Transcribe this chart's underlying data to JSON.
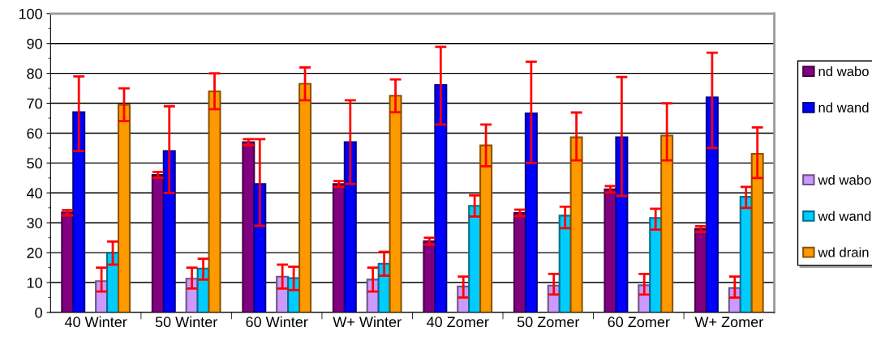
{
  "chart_data": {
    "type": "bar",
    "categories": [
      "40 Winter",
      "50 Winter",
      "60 Winter",
      "W+ Winter",
      "40 Zomer",
      "50 Zomer",
      "60 Zomer",
      "W+ Zomer"
    ],
    "ylim": [
      0,
      100
    ],
    "yticks": [
      0,
      10,
      20,
      30,
      40,
      50,
      60,
      70,
      80,
      90,
      100
    ],
    "grid": "y",
    "legend": "right",
    "series": [
      {
        "name": "nd wabo",
        "color": "#800080",
        "values": [
          33.5,
          46,
          57,
          43,
          23.8,
          33.3,
          41.2,
          28
        ],
        "errors": [
          [
            32.5,
            34.3
          ],
          [
            45,
            47
          ],
          [
            56,
            58
          ],
          [
            42,
            44
          ],
          [
            22.7,
            25
          ],
          [
            32.2,
            34.4
          ],
          [
            40.1,
            42.3
          ],
          [
            26.9,
            28.9
          ]
        ]
      },
      {
        "name": "nd wand",
        "color": "#0000ff",
        "values": [
          67,
          54,
          43,
          57,
          76.1,
          66.6,
          58.6,
          72
        ],
        "errors": [
          [
            54,
            79
          ],
          [
            40,
            69
          ],
          [
            29,
            58
          ],
          [
            43,
            71
          ],
          [
            62.9,
            88.9
          ],
          [
            50,
            83.9
          ],
          [
            39,
            78.8
          ],
          [
            55,
            86.9
          ]
        ]
      },
      {
        "values": [
          null,
          null,
          null,
          null,
          null,
          null,
          null,
          null
        ]
      },
      {
        "name": "wd wabo",
        "color": "#cc99ff",
        "values": [
          10.5,
          11.3,
          12,
          11,
          8.7,
          9,
          9.1,
          8.2
        ],
        "errors": [
          [
            7,
            15
          ],
          [
            8,
            15
          ],
          [
            8,
            16
          ],
          [
            7,
            15
          ],
          [
            5,
            12
          ],
          [
            6,
            12.9
          ],
          [
            6,
            12.9
          ],
          [
            5,
            12
          ]
        ]
      },
      {
        "name": "wd wand",
        "color": "#00ccff",
        "values": [
          20,
          14.7,
          11.5,
          16.3,
          35.7,
          32.4,
          31.6,
          38.7
        ],
        "errors": [
          [
            16,
            23.7
          ],
          [
            11,
            18
          ],
          [
            7.5,
            15.3
          ],
          [
            12.3,
            20.3
          ],
          [
            32.1,
            39.2
          ],
          [
            28.2,
            35.4
          ],
          [
            27.7,
            34.7
          ],
          [
            35,
            42
          ]
        ]
      },
      {
        "name": "wd drain",
        "color": "#ff9900",
        "values": [
          69.5,
          74,
          76.5,
          72.5,
          55.9,
          58.6,
          59.2,
          53.1
        ],
        "errors": [
          [
            64,
            75
          ],
          [
            68,
            80
          ],
          [
            71,
            82
          ],
          [
            67,
            78
          ],
          [
            48.9,
            62.9
          ],
          [
            50.9,
            66.9
          ],
          [
            50.9,
            70
          ],
          [
            45,
            61.9
          ]
        ]
      }
    ]
  }
}
